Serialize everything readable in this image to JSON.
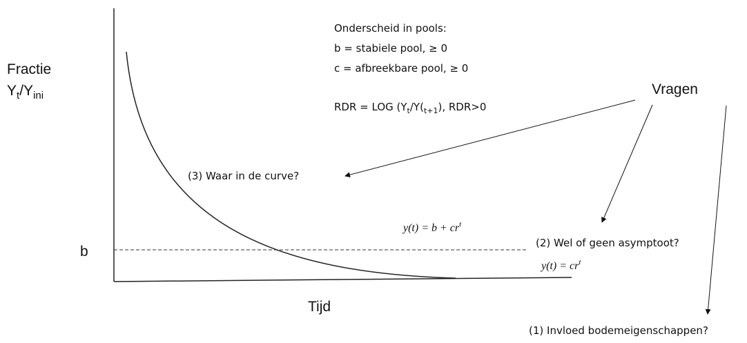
{
  "y_label": {
    "line1": "Fractie",
    "y1": "Y",
    "sub1": "t",
    "y2": "/Y",
    "sub2": "ini"
  },
  "pools": {
    "title": "Onderscheid in pools:",
    "b": "b = stabiele pool, ≥ 0",
    "c": "c = afbreekbare pool, ≥ 0",
    "rdr": {
      "p1": "RDR = LOG (Y",
      "s1": "t",
      "p2": "/Y(",
      "s2": "t+1",
      "p3": "), RDR>0"
    }
  },
  "questions": {
    "title": "Vragen",
    "q3": "(3) Waar in de curve?",
    "q2": "(2) Wel of geen asymptoot?",
    "q1": "(1) Invloed bodemeigenschappen?"
  },
  "formula1": {
    "base": "y(t) = b + cr",
    "exp": "t"
  },
  "formula2": {
    "base": "y(t) = cr",
    "exp": "t"
  },
  "b_label": "b",
  "x_label": "Tijd"
}
